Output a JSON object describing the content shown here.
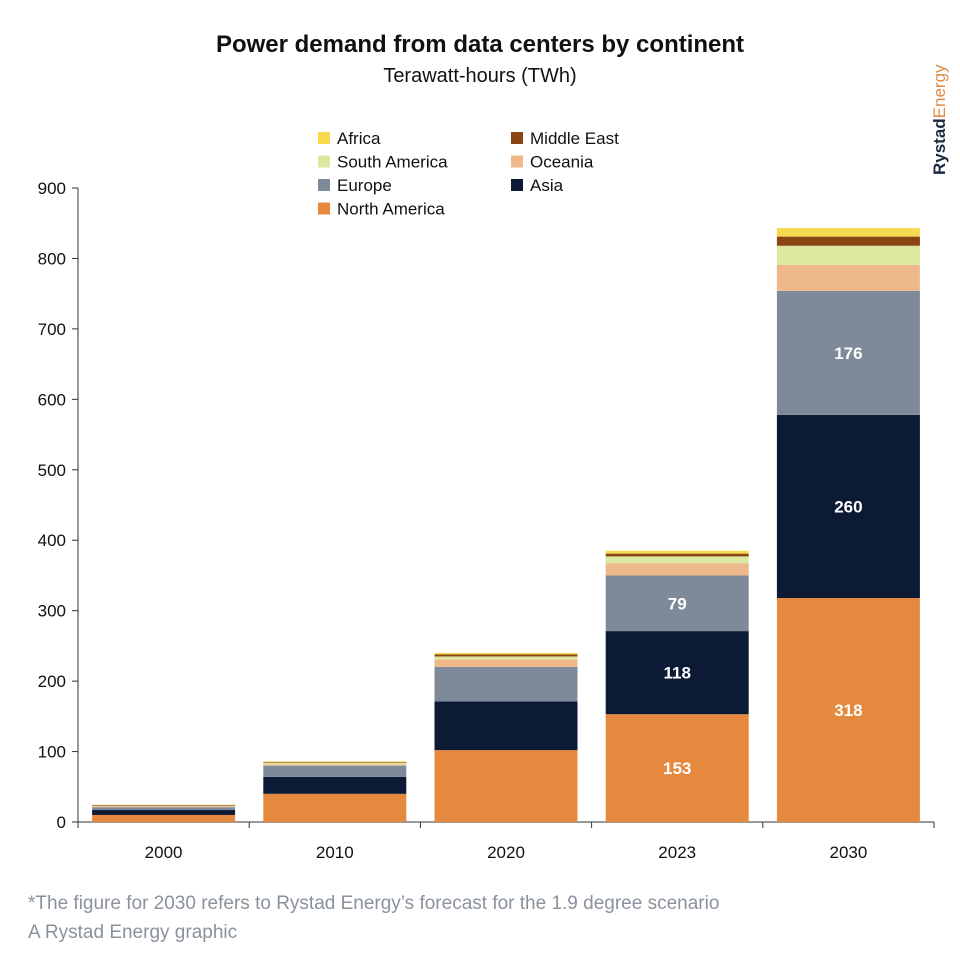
{
  "header": {
    "title": "Power demand from data centers by continent",
    "subtitle": "Terawatt-hours (TWh)"
  },
  "brand": {
    "part1": "Rystad",
    "part2": "Energy",
    "color1": "#1b2a41",
    "color2": "#e08b45"
  },
  "footer": {
    "note": "*The figure for 2030 refers to Rystad Energy’s forecast for the 1.9 degree scenario",
    "credit": "A Rystad Energy graphic"
  },
  "chart_data": {
    "type": "bar",
    "stacked": true,
    "title": "Power demand from data centers by continent",
    "subtitle": "Terawatt-hours (TWh)",
    "xlabel": "",
    "ylabel": "",
    "categories": [
      "2000",
      "2010",
      "2020",
      "2023",
      "2030"
    ],
    "ylim": [
      0,
      900
    ],
    "yticks": [
      0,
      100,
      200,
      300,
      400,
      500,
      600,
      700,
      800,
      900
    ],
    "grid": false,
    "legend_position": "top",
    "series": [
      {
        "name": "North America",
        "color": "#e5893f",
        "values": [
          10,
          40,
          102,
          153,
          318
        ],
        "labels": [
          null,
          null,
          null,
          "153",
          "318"
        ]
      },
      {
        "name": "Asia",
        "color": "#0c1a35",
        "values": [
          7,
          24,
          69,
          118,
          260
        ],
        "labels": [
          null,
          null,
          null,
          "118",
          "260"
        ]
      },
      {
        "name": "Europe",
        "color": "#7e8a99",
        "values": [
          4,
          16,
          49,
          79,
          176
        ],
        "labels": [
          null,
          null,
          null,
          "79",
          "176"
        ]
      },
      {
        "name": "Oceania",
        "color": "#efb88a",
        "values": [
          1,
          2,
          11,
          17,
          37
        ],
        "labels": [
          null,
          null,
          null,
          null,
          null
        ]
      },
      {
        "name": "South America",
        "color": "#dbe8a0",
        "values": [
          1,
          2,
          4,
          10,
          27
        ],
        "labels": [
          null,
          null,
          null,
          null,
          null
        ]
      },
      {
        "name": "Middle East",
        "color": "#8b4513",
        "values": [
          1,
          1,
          3,
          4,
          13
        ],
        "labels": [
          null,
          null,
          null,
          null,
          null
        ]
      },
      {
        "name": "Africa",
        "color": "#f6d94e",
        "values": [
          0.5,
          1,
          2,
          4,
          12
        ],
        "labels": [
          null,
          null,
          null,
          null,
          null
        ]
      }
    ],
    "legend_order": [
      "Africa",
      "Middle East",
      "South America",
      "Oceania",
      "Europe",
      "Asia",
      "North America"
    ]
  }
}
